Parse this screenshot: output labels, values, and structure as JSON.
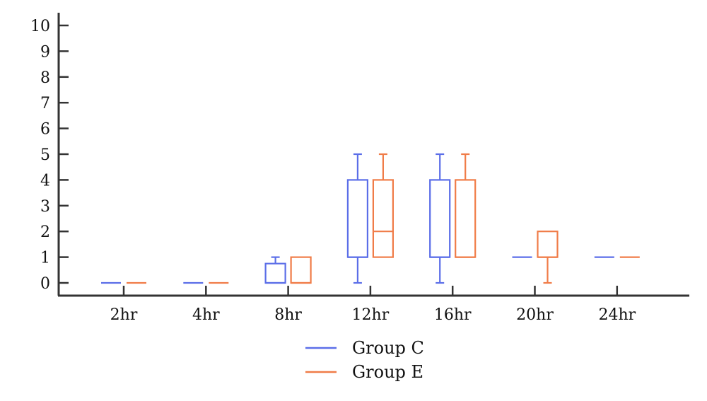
{
  "chart_data": {
    "type": "box",
    "title": "",
    "xlabel": "",
    "ylabel": "",
    "categories": [
      "2hr",
      "4hr",
      "8hr",
      "12hr",
      "16hr",
      "20hr",
      "24hr"
    ],
    "ylim": [
      0,
      10
    ],
    "yticks": [
      0,
      1,
      2,
      3,
      4,
      5,
      6,
      7,
      8,
      9,
      10
    ],
    "grid": false,
    "legend_position": "bottom-center",
    "series": [
      {
        "name": "Group C",
        "color": "#5b6ee8",
        "boxes": [
          {
            "min": 0,
            "q1": 0,
            "median": 0,
            "q3": 0,
            "max": 0
          },
          {
            "min": 0,
            "q1": 0,
            "median": 0,
            "q3": 0,
            "max": 0
          },
          {
            "min": 0,
            "q1": 0,
            "median": 0,
            "q3": 0.75,
            "max": 1
          },
          {
            "min": 0,
            "q1": 1,
            "median": 1,
            "q3": 4,
            "max": 5
          },
          {
            "min": 0,
            "q1": 1,
            "median": 1,
            "q3": 4,
            "max": 5
          },
          {
            "min": 1,
            "q1": 1,
            "median": 1,
            "q3": 1,
            "max": 1
          },
          {
            "min": 1,
            "q1": 1,
            "median": 1,
            "q3": 1,
            "max": 1
          }
        ]
      },
      {
        "name": "Group E",
        "color": "#f07c48",
        "boxes": [
          {
            "min": 0,
            "q1": 0,
            "median": 0,
            "q3": 0,
            "max": 0
          },
          {
            "min": 0,
            "q1": 0,
            "median": 0,
            "q3": 0,
            "max": 0
          },
          {
            "min": 0,
            "q1": 0,
            "median": 0,
            "q3": 1,
            "max": 1
          },
          {
            "min": 1,
            "q1": 1,
            "median": 2,
            "q3": 4,
            "max": 5
          },
          {
            "min": 1,
            "q1": 1,
            "median": 1,
            "q3": 4,
            "max": 5
          },
          {
            "min": 0,
            "q1": 1,
            "median": 1,
            "q3": 2,
            "max": 2
          },
          {
            "min": 1,
            "q1": 1,
            "median": 1,
            "q3": 1,
            "max": 1
          }
        ]
      }
    ]
  },
  "colors": {
    "axis": "#333333",
    "background": "#ffffff"
  }
}
